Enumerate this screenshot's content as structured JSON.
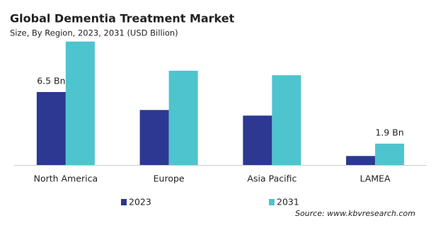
{
  "chart_data": {
    "type": "bar",
    "title": "Global Dementia Treatment Market",
    "subtitle": "Size, By Region, 2023, 2031 (USD Billion)",
    "categories": [
      "North America",
      "Europe",
      "Asia Pacific",
      "LAMEA"
    ],
    "series": [
      {
        "name": "2023",
        "color": "#2c3891",
        "values": [
          6.5,
          4.9,
          4.4,
          0.8
        ],
        "value_labels": [
          "6.5 Bn",
          null,
          null,
          null
        ]
      },
      {
        "name": "2031",
        "color": "#4ec4ce",
        "values": [
          11.0,
          8.4,
          8.0,
          1.9
        ],
        "value_labels": [
          null,
          null,
          null,
          "1.9 Bn"
        ]
      }
    ],
    "source": "Source: www.kbvresearch.com"
  }
}
